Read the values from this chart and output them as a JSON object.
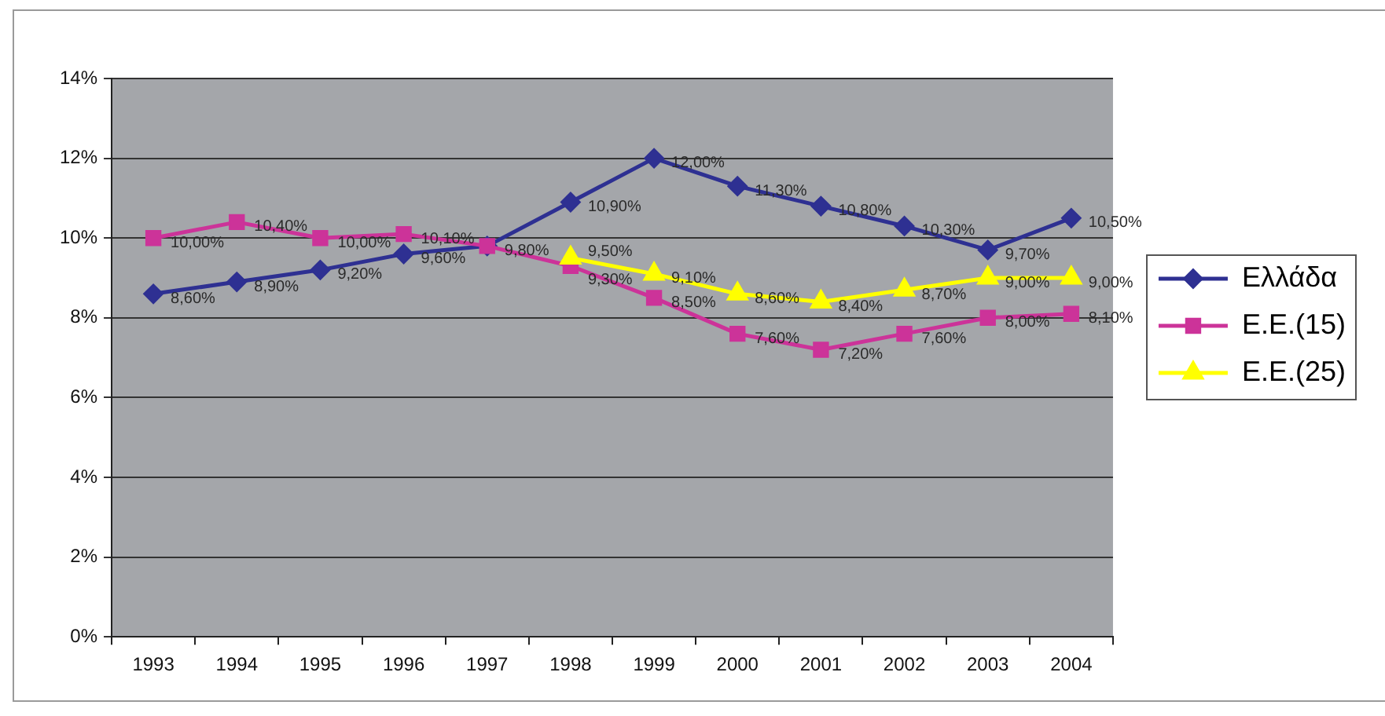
{
  "chart_data": {
    "type": "line",
    "categories": [
      "1993",
      "1994",
      "1995",
      "1996",
      "1997",
      "1998",
      "1999",
      "2000",
      "2001",
      "2002",
      "2003",
      "2004"
    ],
    "ylim": [
      0,
      14
    ],
    "yticks": [
      {
        "value": 0,
        "label": "0%"
      },
      {
        "value": 2,
        "label": "2%"
      },
      {
        "value": 4,
        "label": "4%"
      },
      {
        "value": 6,
        "label": "6%"
      },
      {
        "value": 8,
        "label": "8%"
      },
      {
        "value": 10,
        "label": "10%"
      },
      {
        "value": 12,
        "label": "12%"
      },
      {
        "value": 14,
        "label": "14%"
      }
    ],
    "grid": "y",
    "legend": "right",
    "series": [
      {
        "name": "Ελλάδα",
        "color": "#2e3092",
        "marker": "diamond",
        "values": [
          8.6,
          8.9,
          9.2,
          9.6,
          9.8,
          10.9,
          12.0,
          11.3,
          10.8,
          10.3,
          9.7,
          10.5
        ],
        "value_labels": [
          "8,60%",
          "8,90%",
          "9,20%",
          "9,60%",
          "9,80%",
          "10,90%",
          "12,00%",
          "11,30%",
          "10,80%",
          "10,30%",
          "9,70%",
          "10,50%"
        ]
      },
      {
        "name": "Ε.Ε.(15)",
        "color": "#cc3399",
        "marker": "square",
        "values": [
          10.0,
          10.4,
          10.0,
          10.1,
          9.8,
          9.3,
          8.5,
          7.6,
          7.2,
          7.6,
          8.0,
          8.1
        ],
        "value_labels": [
          "10,00%",
          "10,40%",
          "10,00%",
          "10,10%",
          null,
          "9,30%",
          "8,50%",
          "7,60%",
          "7,20%",
          "7,60%",
          "8,00%",
          "8,10%"
        ]
      },
      {
        "name": "Ε.Ε.(25)",
        "color": "#ffff00",
        "marker": "triangle",
        "values": [
          null,
          null,
          null,
          null,
          null,
          9.5,
          9.1,
          8.6,
          8.4,
          8.7,
          9.0,
          9.0
        ],
        "value_labels": [
          null,
          null,
          null,
          null,
          null,
          "9,50%",
          "9,10%",
          "8,60%",
          "8,40%",
          "8,70%",
          "9,00%",
          "9,00%"
        ]
      }
    ]
  }
}
